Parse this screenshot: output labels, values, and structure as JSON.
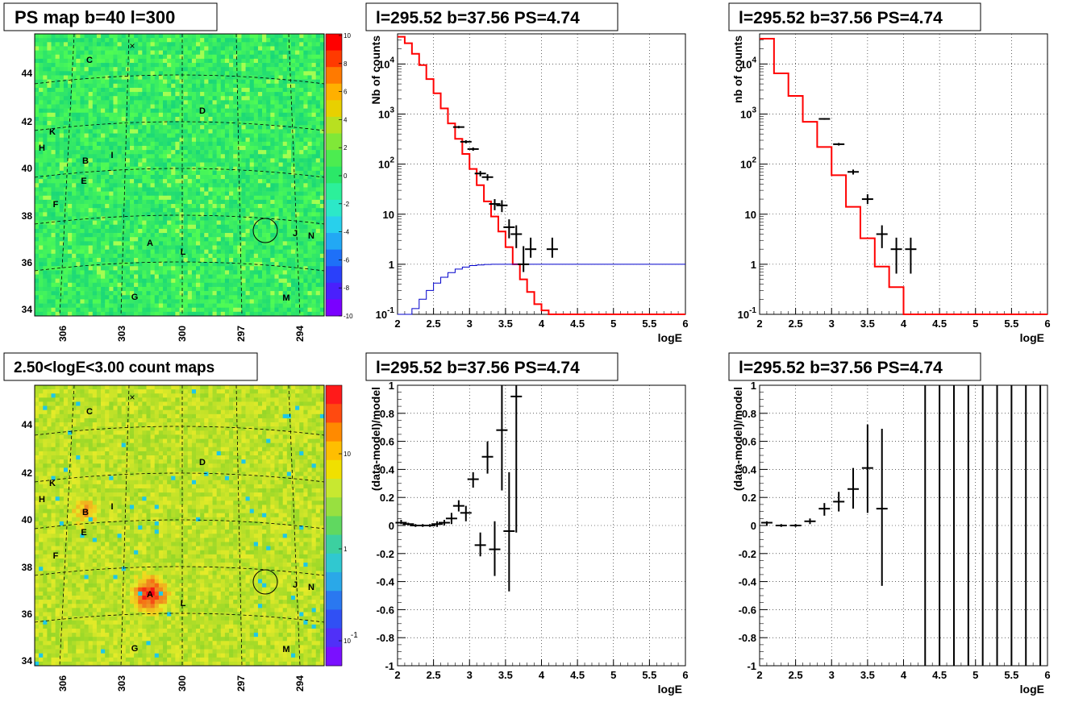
{
  "maps": {
    "psmap": {
      "title": "PS map b=40 l=300",
      "colorbar_ticks": [
        "10",
        "8",
        "6",
        "4",
        "2",
        "0",
        "-2",
        "-4",
        "-6",
        "-8",
        "-10"
      ],
      "colors": {
        "background": "#2be868",
        "bar_top": "#ff0000",
        "bar_bottom": "#7a00ff"
      }
    },
    "countmap": {
      "title": "2.50<logE<3.00 count maps",
      "colorbar_ticks": [
        "10",
        "1",
        "10^-1"
      ],
      "colors": {
        "background": "#c8e830",
        "hot": "#ff0000"
      }
    },
    "y_ticks": [
      "44",
      "42",
      "40",
      "38",
      "36",
      "34"
    ],
    "x_ticks": [
      "306",
      "303",
      "300",
      "297",
      "294"
    ],
    "source_labels": [
      "C",
      "D",
      "K",
      "H",
      "I",
      "B",
      "E",
      "F",
      "A",
      "L",
      "J",
      "N",
      "G",
      "M"
    ],
    "ring_marker": "circle at source position",
    "cross_marker": "×"
  },
  "chart_data": [
    {
      "type": "line",
      "title": "l=295.52 b=37.56 PS=4.74",
      "xlabel": "logE",
      "ylabel": "Nb of counts",
      "xlim": [
        2,
        6
      ],
      "ylim": [
        0.1,
        40000
      ],
      "yscale": "log",
      "x_ticks": [
        "2",
        "2.5",
        "3",
        "3.5",
        "4",
        "4.5",
        "5",
        "5.5",
        "6"
      ],
      "y_ticks": [
        "10^-1",
        "1",
        "10",
        "10^2",
        "10^3",
        "10^4"
      ],
      "grid": true,
      "series": [
        {
          "color": "#ff0000",
          "style": "step",
          "edges": [
            2,
            2.1,
            2.2,
            2.3,
            2.4,
            2.5,
            2.6,
            2.7,
            2.8,
            2.9,
            3,
            3.1,
            3.2,
            3.3,
            3.4,
            3.5,
            3.6,
            3.7,
            3.8,
            3.9,
            4,
            4.1,
            4.2,
            6
          ],
          "values": [
            35000,
            26000,
            16000,
            9500,
            5000,
            2600,
            1300,
            650,
            320,
            160,
            80,
            38,
            18,
            9,
            4.5,
            2.2,
            1.0,
            0.5,
            0.28,
            0.16,
            0.12,
            0.1,
            0.1
          ]
        },
        {
          "color": "#0000cc",
          "style": "step",
          "edges": [
            2,
            2.1,
            2.2,
            2.3,
            2.4,
            2.5,
            2.6,
            2.7,
            2.8,
            2.9,
            3,
            3.1,
            3.2,
            3.3,
            3.4,
            3.5,
            6
          ],
          "values": [
            0.05,
            0.09,
            0.13,
            0.2,
            0.3,
            0.42,
            0.55,
            0.68,
            0.8,
            0.88,
            0.94,
            0.97,
            0.99,
            1.0,
            1.0,
            1.0
          ]
        },
        {
          "color": "#000000",
          "style": "errorbar",
          "x": [
            2.85,
            2.95,
            3.05,
            3.15,
            3.25,
            3.35,
            3.45,
            3.55,
            3.65,
            3.75,
            3.85,
            4.15
          ],
          "y": [
            550,
            280,
            200,
            65,
            55,
            16,
            15,
            5.5,
            4,
            1,
            2,
            2
          ],
          "yerr_lo": [
            520,
            260,
            185,
            57,
            47,
            12,
            11,
            3.3,
            2.1,
            0.7,
            1.35,
            1.35
          ],
          "yerr_hi": [
            580,
            300,
            215,
            73,
            63,
            20,
            19,
            7.9,
            6,
            2.3,
            3.4,
            3.4
          ]
        }
      ]
    },
    {
      "type": "line",
      "title": "l=295.52 b=37.56 PS=4.74",
      "xlabel": "logE",
      "ylabel": "nb of counts",
      "xlim": [
        2,
        6
      ],
      "ylim": [
        0.1,
        40000
      ],
      "yscale": "log",
      "x_ticks": [
        "2",
        "2.5",
        "3",
        "3.5",
        "4",
        "4.5",
        "5",
        "5.5",
        "6"
      ],
      "y_ticks": [
        "10^-1",
        "1",
        "10",
        "10^2",
        "10^3",
        "10^4"
      ],
      "grid": true,
      "series": [
        {
          "color": "#ff0000",
          "style": "step",
          "edges": [
            2,
            2.2,
            2.4,
            2.6,
            2.8,
            3,
            3.2,
            3.4,
            3.6,
            3.8,
            4,
            4.2,
            6
          ],
          "values": [
            32000,
            6500,
            2300,
            700,
            220,
            60,
            14,
            3.3,
            0.9,
            0.35,
            0.1,
            0.1
          ]
        },
        {
          "color": "#000000",
          "style": "errorbar",
          "x": [
            2.9,
            3.1,
            3.3,
            3.5,
            3.7,
            3.9,
            4.1
          ],
          "y": [
            800,
            250,
            70,
            20,
            4,
            2,
            2
          ],
          "yerr_lo": [
            770,
            235,
            62,
            16,
            2.1,
            0.65,
            0.65
          ],
          "yerr_hi": [
            830,
            265,
            78,
            25,
            6,
            3.4,
            3.4
          ]
        }
      ]
    },
    {
      "type": "scatter",
      "title": "l=295.52 b=37.56 PS=4.74",
      "xlabel": "logE",
      "ylabel": "(data-model)/model",
      "xlim": [
        2,
        6
      ],
      "ylim": [
        -1,
        1
      ],
      "x_ticks": [
        "2",
        "2.5",
        "3",
        "3.5",
        "4",
        "4.5",
        "5",
        "5.5",
        "6"
      ],
      "y_ticks": [
        "-1",
        "-0.8",
        "-0.6",
        "-0.4",
        "-0.2",
        "0",
        "0.2",
        "0.4",
        "0.6",
        "0.8",
        "1"
      ],
      "grid": true,
      "series": [
        {
          "color": "#000000",
          "style": "errorbar",
          "x": [
            2.05,
            2.15,
            2.25,
            2.35,
            2.45,
            2.55,
            2.65,
            2.75,
            2.85,
            2.95,
            3.05,
            3.15,
            3.25,
            3.35,
            3.45,
            3.55,
            3.65
          ],
          "y": [
            0.02,
            0.01,
            0.0,
            0.0,
            0.0,
            0.01,
            0.02,
            0.05,
            0.14,
            0.09,
            0.33,
            -0.14,
            0.49,
            -0.17,
            0.68,
            -0.04,
            0.92
          ],
          "yerr_lo": [
            0.01,
            0.0,
            -0.01,
            -0.01,
            -0.01,
            -0.01,
            0.0,
            0.01,
            0.1,
            0.03,
            0.27,
            -0.22,
            0.37,
            -0.36,
            0.25,
            -0.47,
            -0.05
          ],
          "yerr_hi": [
            0.04,
            0.02,
            0.01,
            0.01,
            0.01,
            0.03,
            0.04,
            0.09,
            0.18,
            0.14,
            0.38,
            -0.05,
            0.6,
            0.03,
            1.0,
            0.38,
            1.0
          ]
        }
      ]
    },
    {
      "type": "scatter",
      "title": "l=295.52 b=37.56 PS=4.74",
      "xlabel": "logE",
      "ylabel": "(data-model)/model",
      "xlim": [
        2,
        6
      ],
      "ylim": [
        -1,
        1
      ],
      "x_ticks": [
        "2",
        "2.5",
        "3",
        "3.5",
        "4",
        "4.5",
        "5",
        "5.5",
        "6"
      ],
      "y_ticks": [
        "-1",
        "-0.8",
        "-0.6",
        "-0.4",
        "-0.2",
        "0",
        "0.2",
        "0.4",
        "0.6",
        "0.8",
        "1"
      ],
      "grid": true,
      "series": [
        {
          "color": "#000000",
          "style": "errorbar",
          "x": [
            2.1,
            2.3,
            2.5,
            2.7,
            2.9,
            3.1,
            3.3,
            3.5,
            3.7
          ],
          "y": [
            0.02,
            0.0,
            0.0,
            0.03,
            0.12,
            0.17,
            0.26,
            0.41,
            0.12
          ],
          "yerr_lo": [
            0.0,
            -0.01,
            -0.01,
            0.01,
            0.07,
            0.1,
            0.12,
            0.09,
            -0.43
          ],
          "yerr_hi": [
            0.03,
            0.01,
            0.01,
            0.05,
            0.16,
            0.24,
            0.41,
            0.72,
            0.69
          ]
        },
        {
          "color": "#000000",
          "style": "vline",
          "x": [
            4.3,
            4.5,
            4.7,
            4.9,
            5.1,
            5.3,
            5.5,
            5.7,
            5.9
          ]
        }
      ]
    }
  ]
}
